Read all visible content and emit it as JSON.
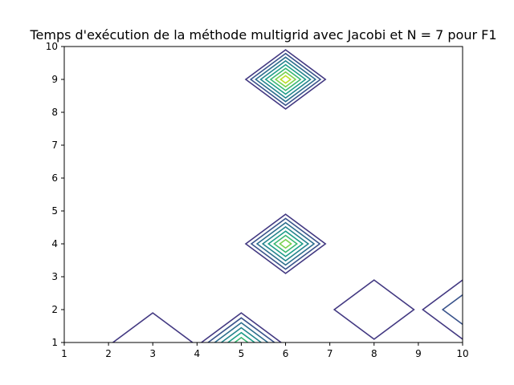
{
  "chart_data": {
    "type": "contour",
    "title": "Temps d'exécution de la méthode multigrid avec Jacobi et N = 7 pour F1",
    "xlabel": "",
    "ylabel": "",
    "xlim": [
      1,
      10
    ],
    "ylim": [
      1,
      10
    ],
    "x_ticks": [
      1,
      2,
      3,
      4,
      5,
      6,
      7,
      8,
      9,
      10
    ],
    "y_ticks": [
      1,
      2,
      3,
      4,
      5,
      6,
      7,
      8,
      9,
      10
    ],
    "grid": false,
    "colormap": "viridis",
    "level_colors": [
      "#433982",
      "#3a548c",
      "#2e6f8e",
      "#25858e",
      "#1f9e89",
      "#3ab874",
      "#7cd250",
      "#bade28"
    ],
    "peaks": [
      {
        "x": 6,
        "y": 9,
        "levels": 8
      },
      {
        "x": 6,
        "y": 4,
        "levels": 7
      },
      {
        "x": 5,
        "y": 1,
        "levels": 6
      },
      {
        "x": 10,
        "y": 2,
        "levels": 2
      },
      {
        "x": 8,
        "y": 2,
        "levels": 1
      },
      {
        "x": 3,
        "y": 1,
        "levels": 1
      }
    ],
    "peak_base_halfwidth": [
      0.9,
      0.9
    ]
  }
}
